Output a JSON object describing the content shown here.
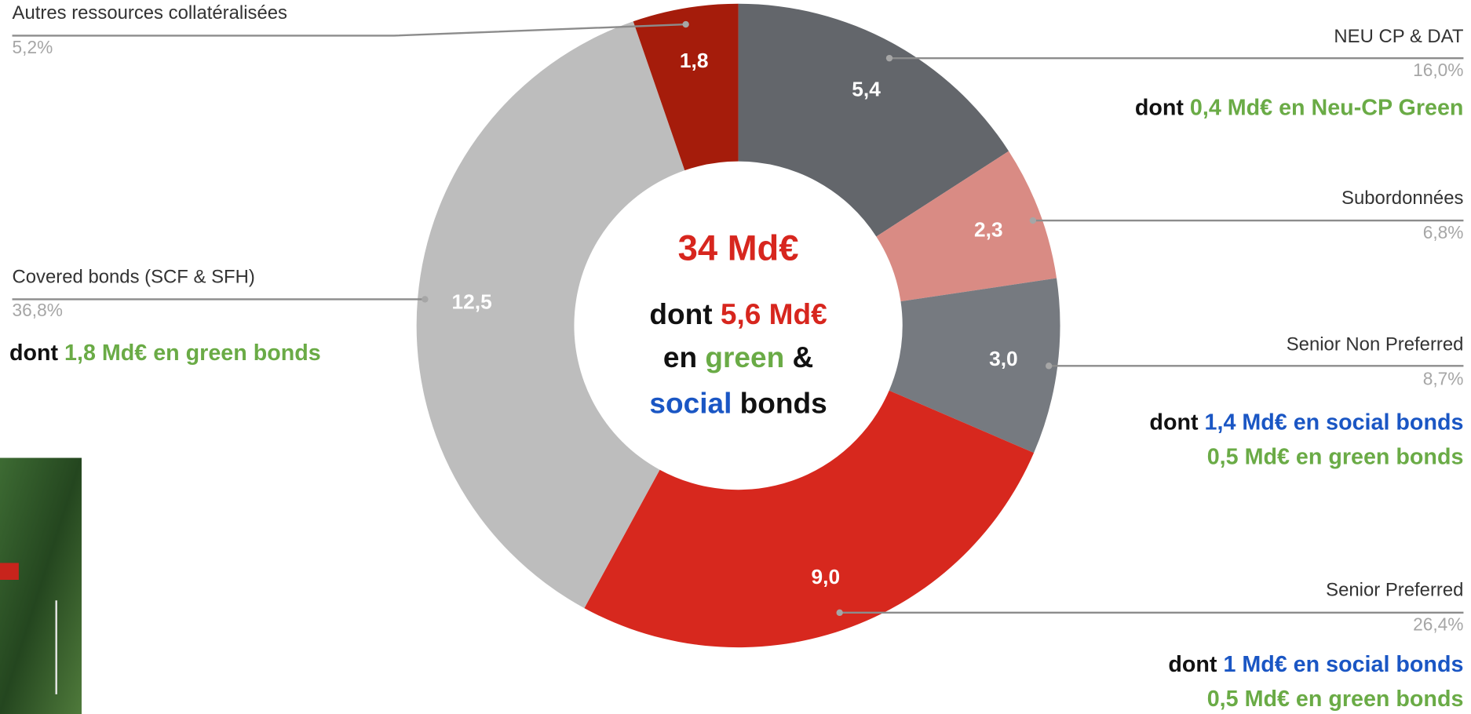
{
  "chart_data": {
    "type": "donut",
    "categories": [
      "NEU CP & DAT",
      "Subordonnées",
      "Senior Non Preferred",
      "Senior Preferred",
      "Covered bonds (SCF & SFH)",
      "Autres ressources collatéralisées"
    ],
    "values": [
      5.4,
      2.3,
      3.0,
      9.0,
      12.5,
      1.8
    ],
    "value_labels": [
      "5,4",
      "2,3",
      "3,0",
      "9,0",
      "12,5",
      "1,8"
    ],
    "percent_labels": [
      "16,0%",
      "6,8%",
      "8,7%",
      "26,4%",
      "36,8%",
      "5,2%"
    ],
    "colors": [
      "#63666b",
      "#d98b84",
      "#767a80",
      "#d7281e",
      "#bdbdbd",
      "#a51c0b"
    ],
    "notes": [
      [
        [
          {
            "text": "dont "
          },
          {
            "text": "0,4 Md€ en Neu-CP Green",
            "color": "#6aab46"
          }
        ]
      ],
      null,
      [
        [
          {
            "text": "dont "
          },
          {
            "text": "1,4 Md€ en social bonds",
            "color": "#1a56c4"
          }
        ],
        [
          {
            "text": "0,5 Md€ en green bonds",
            "color": "#6aab46"
          }
        ]
      ],
      [
        [
          {
            "text": "dont "
          },
          {
            "text": "1 Md€ en social bonds",
            "color": "#1a56c4"
          }
        ],
        [
          {
            "text": "0,5 Md€ en green bonds",
            "color": "#6aab46"
          }
        ]
      ],
      [
        [
          {
            "text": "dont "
          },
          {
            "text": "1,8 Md€ en green bonds",
            "color": "#6aab46"
          }
        ]
      ],
      null
    ],
    "center": {
      "title": "34 Md€",
      "title_color": "#d7261e",
      "lines": [
        [
          {
            "text": "dont "
          },
          {
            "text": "5,6 Md€",
            "color": "#d7261e"
          }
        ],
        [
          {
            "text": "en "
          },
          {
            "text": "green",
            "color": "#6aab46"
          },
          {
            "text": " &"
          }
        ],
        [
          {
            "text": "social",
            "color": "#1a56c4"
          },
          {
            "text": " bonds"
          }
        ]
      ]
    }
  }
}
